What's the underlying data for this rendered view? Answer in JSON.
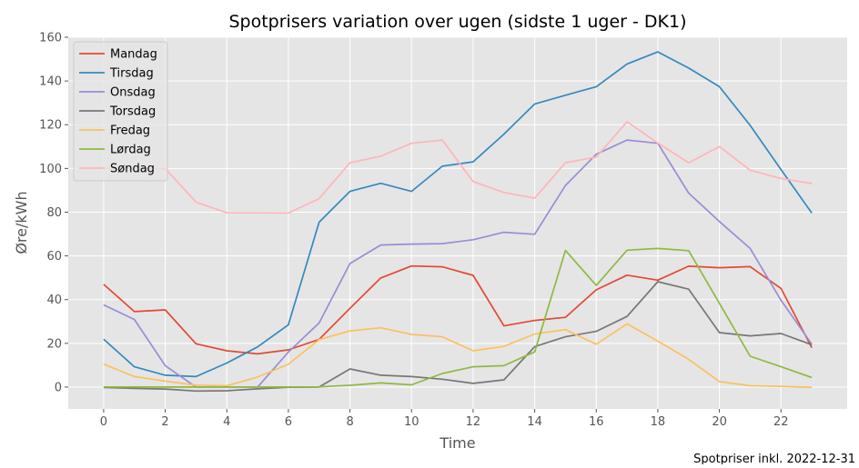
{
  "chart_data": {
    "type": "line",
    "title": "Spotprisers variation over ugen (sidste 1 uger - DK1)",
    "xlabel": "Time",
    "ylabel": "Øre/kWh",
    "footnote": "Spotpriser inkl. 2022-12-31",
    "xlim": [
      -1.15,
      24.15
    ],
    "ylim": [
      -10,
      160
    ],
    "xticks": [
      0,
      2,
      4,
      6,
      8,
      10,
      12,
      14,
      16,
      18,
      20,
      22
    ],
    "yticks": [
      0,
      20,
      40,
      60,
      80,
      100,
      120,
      140,
      160
    ],
    "grid": true,
    "legend_position": "top-left",
    "x": [
      0,
      1,
      2,
      3,
      4,
      5,
      6,
      7,
      8,
      9,
      10,
      11,
      12,
      13,
      14,
      15,
      16,
      17,
      18,
      19,
      20,
      21,
      22,
      23
    ],
    "series": [
      {
        "name": "Mandag",
        "color": "#E24A33",
        "values": [
          47,
          34.5,
          35.3,
          19.8,
          16.6,
          15.2,
          17,
          21.8,
          36,
          49.9,
          55.4,
          55,
          51.1,
          28,
          30.5,
          31.9,
          44.5,
          51.2,
          48.9,
          55.3,
          54.6,
          55.1,
          45.1,
          18
        ]
      },
      {
        "name": "Tirsdag",
        "color": "#348ABD",
        "values": [
          21.9,
          9.3,
          5.4,
          4.8,
          11,
          18.4,
          28.5,
          75.4,
          89.5,
          93.2,
          89.5,
          101,
          103,
          115.7,
          129.5,
          133.5,
          137.4,
          147.8,
          153.3,
          145.9,
          137.4,
          119.7,
          99.5,
          79.6
        ]
      },
      {
        "name": "Onsdag",
        "color": "#988ED5",
        "values": [
          37.6,
          30.9,
          9.8,
          0,
          0,
          0,
          16,
          29.3,
          56.5,
          65,
          65.4,
          65.6,
          67.4,
          70.8,
          69.9,
          92.2,
          106.5,
          113,
          111.5,
          88.7,
          75.7,
          63.4,
          39.7,
          19.6
        ]
      },
      {
        "name": "Torsdag",
        "color": "#777777",
        "values": [
          -0.2,
          -0.6,
          -0.9,
          -1.8,
          -1.7,
          -0.8,
          -0.1,
          0,
          8.3,
          5.4,
          4.8,
          3.6,
          1.7,
          3.3,
          18.5,
          23,
          25.5,
          32.3,
          48.2,
          44.8,
          24.9,
          23.4,
          24.5,
          19.4
        ]
      },
      {
        "name": "Fredag",
        "color": "#FBC15E",
        "values": [
          10.5,
          4.8,
          2.7,
          0.9,
          0.6,
          4.6,
          10.4,
          21.7,
          25.7,
          27.1,
          24.1,
          23,
          16.6,
          18.6,
          24.3,
          26.3,
          19.6,
          28.9,
          21,
          12.7,
          2.5,
          0.6,
          0.3,
          -0.1
        ]
      },
      {
        "name": "Lørdag",
        "color": "#8EBA42",
        "values": [
          0,
          0,
          0,
          0,
          0,
          0,
          0,
          0.1,
          0.8,
          1.9,
          1,
          6.2,
          9.3,
          9.8,
          16.1,
          62.5,
          46.5,
          62.6,
          63.4,
          62.4,
          38.3,
          14.1,
          9.3,
          4.4
        ]
      },
      {
        "name": "Søndag",
        "color": "#FFB5B8",
        "values": [
          100,
          100,
          100,
          84.6,
          79.7,
          79.7,
          79.6,
          86.2,
          102.6,
          105.6,
          111.5,
          113,
          94,
          89,
          86.4,
          102.6,
          105.2,
          121.4,
          111.6,
          102.6,
          110,
          99.2,
          95.4,
          93.1
        ]
      }
    ]
  }
}
